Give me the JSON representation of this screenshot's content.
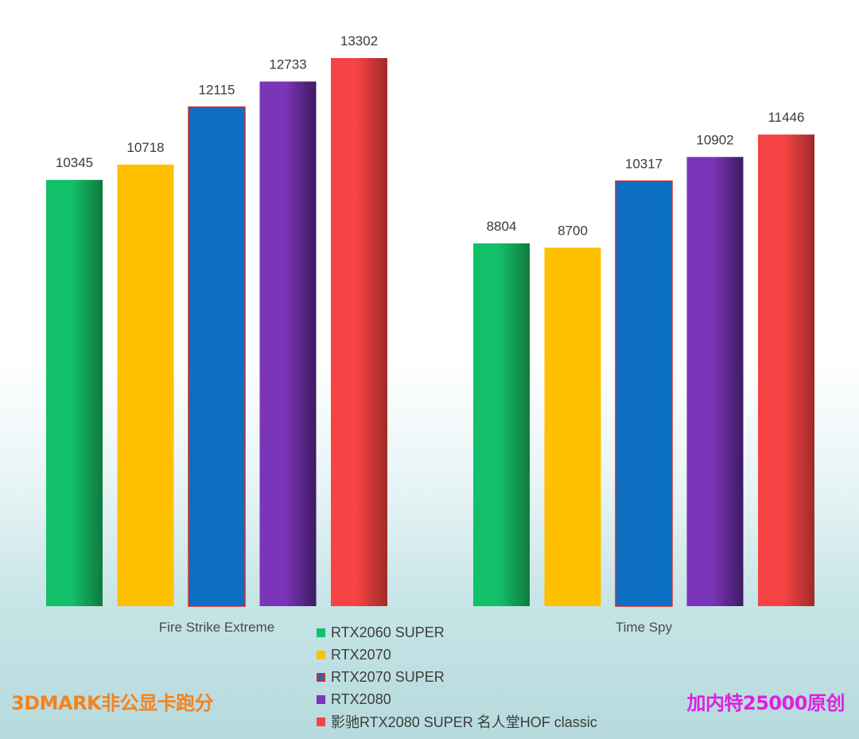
{
  "chart_data": {
    "type": "bar",
    "categories": [
      "Fire Strike Extreme",
      "Time Spy"
    ],
    "series": [
      {
        "name": "RTX2060 SUPER",
        "values": [
          10345,
          8804
        ],
        "color": "#13c06a",
        "color_dark": "#0f7a3e",
        "border": ""
      },
      {
        "name": "RTX2070",
        "values": [
          10718,
          8700
        ],
        "color": "#ffc000",
        "color_dark": "#ffc000",
        "border": ""
      },
      {
        "name": "RTX2070 SUPER",
        "values": [
          12115,
          10317
        ],
        "color": "#0d6fc2",
        "color_dark": "#0d6fc2",
        "border": "#d42a2a"
      },
      {
        "name": "RTX2080",
        "values": [
          12733,
          10902
        ],
        "color": "#7b35b8",
        "color_dark": "#3e1a62",
        "border": ""
      },
      {
        "name": "影驰RTX2080 SUPER 名人堂HOF classic",
        "values": [
          13302,
          11446
        ],
        "color": "#f74343",
        "color_dark": "#a12a2a",
        "border": ""
      }
    ],
    "title": "",
    "xlabel": "",
    "ylabel": "",
    "ylim": [
      0,
      14000
    ],
    "grid": false,
    "legend_position": "bottom-center",
    "data_labels": true
  },
  "footer": {
    "left_text": "3DMARK非公显卡跑分",
    "left_color": "#f5821f",
    "right_text": "加内特25000原创",
    "right_color": "#e020e0"
  }
}
